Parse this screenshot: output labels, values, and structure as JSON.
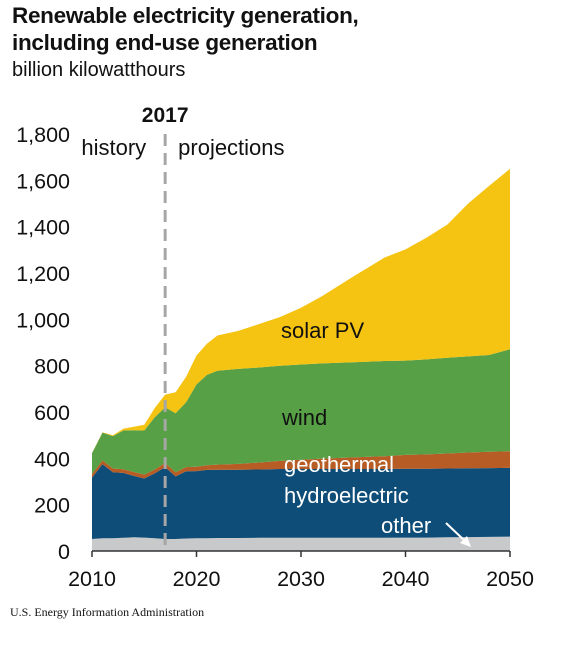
{
  "chart_data": {
    "type": "area",
    "stacked": true,
    "title": "Renewable electricity generation, including end-use generation",
    "title_line1": "Renewable electricity generation,",
    "title_line2": "including end-use generation",
    "subtitle": "billion kilowatthours",
    "source": "U.S. Energy Information Administration",
    "xlim": [
      2010,
      2050
    ],
    "ylim": [
      0,
      1800
    ],
    "x_ticks": [
      "2010",
      "2020",
      "2030",
      "2040",
      "2050"
    ],
    "y_ticks": [
      "0",
      "200",
      "400",
      "600",
      "800",
      "1,000",
      "1,200",
      "1,400",
      "1,600",
      "1,800"
    ],
    "divider": {
      "year": 2017,
      "label": "2017",
      "left_label": "history",
      "right_label": "projections"
    },
    "x": [
      2010,
      2011,
      2012,
      2013,
      2014,
      2015,
      2016,
      2017,
      2018,
      2019,
      2020,
      2021,
      2022,
      2024,
      2026,
      2028,
      2030,
      2032,
      2035,
      2038,
      2040,
      2042,
      2044,
      2046,
      2048,
      2050
    ],
    "series": [
      {
        "name": "other",
        "color": "#c8c9cb",
        "values": [
          52,
          55,
          55,
          57,
          59,
          58,
          55,
          52,
          52,
          54,
          55,
          55,
          56,
          56,
          57,
          57,
          57,
          57,
          57,
          57,
          58,
          58,
          59,
          60,
          61,
          62
        ]
      },
      {
        "name": "hydroelectric",
        "color": "#0e4d78",
        "values": [
          265,
          320,
          285,
          280,
          265,
          255,
          280,
          310,
          270,
          290,
          290,
          295,
          295,
          295,
          295,
          297,
          297,
          297,
          297,
          297,
          297,
          297,
          297,
          297,
          297,
          297
        ]
      },
      {
        "name": "geothermal",
        "color": "#b75c24",
        "values": [
          15,
          16,
          16,
          16,
          17,
          17,
          17,
          18,
          18,
          18,
          19,
          20,
          22,
          25,
          30,
          35,
          40,
          45,
          50,
          55,
          60,
          62,
          65,
          68,
          70,
          72
        ]
      },
      {
        "name": "wind",
        "color": "#57a046",
        "values": [
          90,
          120,
          140,
          167,
          180,
          190,
          225,
          240,
          255,
          280,
          355,
          390,
          405,
          410,
          410,
          411,
          411,
          411,
          411,
          411,
          407,
          410,
          413,
          415,
          418,
          440
        ]
      },
      {
        "name": "solar PV",
        "color": "#f5c311",
        "values": [
          1,
          2,
          4,
          8,
          15,
          25,
          40,
          55,
          90,
          110,
          125,
          135,
          152,
          164,
          188,
          210,
          245,
          290,
          370,
          447,
          480,
          525,
          575,
          660,
          730,
          779
        ]
      }
    ],
    "labels": {
      "solar": "solar PV",
      "wind": "wind",
      "geothermal": "geothermal",
      "hydro": "hydroelectric",
      "other": "other"
    },
    "grid": false,
    "legend": "inline"
  }
}
